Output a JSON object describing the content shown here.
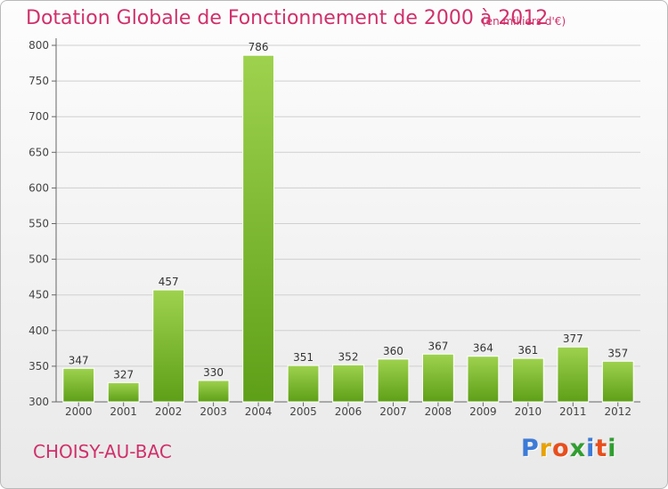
{
  "header": {
    "title": "Dotation Globale de Fonctionnement de 2000 à 2012",
    "subtitle": "(en milliers d'€)"
  },
  "footer": {
    "city": "CHOISY-AU-BAC",
    "logo": [
      "P",
      "r",
      "o",
      "x",
      "i",
      "t",
      "i"
    ]
  },
  "colors": {
    "accent": "#d0306a",
    "bar_top": "#9ed24e",
    "bar_bottom": "#5e9f18",
    "logo": [
      "#3b7bd8",
      "#e8a200",
      "#e94e1b",
      "#2f9e2f",
      "#3b7bd8",
      "#e94e1b",
      "#2f9e2f"
    ]
  },
  "chart_data": {
    "type": "bar",
    "title": "Dotation Globale de Fonctionnement de 2000 à 2012",
    "subtitle": "(en milliers d'€)",
    "xlabel": "",
    "ylabel": "",
    "categories": [
      "2000",
      "2001",
      "2002",
      "2003",
      "2004",
      "2005",
      "2006",
      "2007",
      "2008",
      "2009",
      "2010",
      "2011",
      "2012"
    ],
    "values": [
      347,
      327,
      457,
      330,
      786,
      351,
      352,
      360,
      367,
      364,
      361,
      377,
      357
    ],
    "ylim": [
      300,
      800
    ],
    "yticks": [
      300,
      350,
      400,
      450,
      500,
      550,
      600,
      650,
      700,
      750,
      800
    ],
    "grid": true,
    "legend": "none"
  }
}
